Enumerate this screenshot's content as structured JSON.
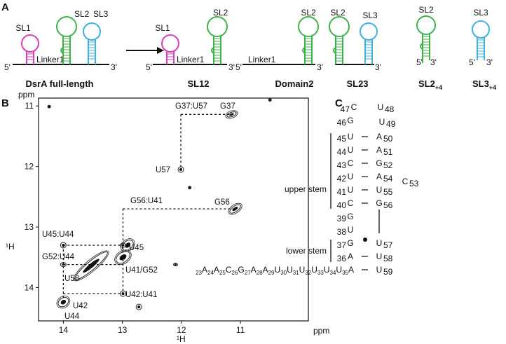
{
  "panel_a": {
    "label": "A",
    "full_length": {
      "name": "DsrA full-length",
      "sl1": "SL1",
      "sl2": "SL2",
      "sl3": "SL3",
      "five": "5'",
      "three": "3'",
      "linker": "Linker1"
    },
    "sl12": {
      "name": "SL12",
      "sl1": "SL1",
      "sl2": "SL2",
      "five": "5'",
      "three": "3'",
      "linker": "Linker1"
    },
    "domain2": {
      "name": "Domain2",
      "sl2": "SL2",
      "five": "5'",
      "three": "3'",
      "linker": "Linker1"
    },
    "sl23": {
      "name": "SL23",
      "sl2": "SL2",
      "sl3": "SL3",
      "three": "3'"
    },
    "sl2_4": {
      "name": "SL2",
      "sub": "+4",
      "sl2": "SL2",
      "five": "5'",
      "three": "3'"
    },
    "sl3_4": {
      "name": "SL3",
      "sub": "+4",
      "sl3": "SL3",
      "five": "5'",
      "three": "3'"
    }
  },
  "panel_b": {
    "label": "B",
    "x_axis": {
      "label": "¹H",
      "unit": "ppm",
      "lim": [
        14.42,
        9.85
      ],
      "ticks": [
        14,
        13,
        12,
        11
      ]
    },
    "y_axis": {
      "label": "¹H",
      "unit": "ppm",
      "lim": [
        10.87,
        14.55
      ],
      "ticks": [
        11,
        12,
        13,
        14
      ]
    },
    "peaks": [
      {
        "x": 11.15,
        "y": 11.14
      },
      {
        "x": 12.01,
        "y": 12.05
      },
      {
        "x": 11.09,
        "y": 12.7
      },
      {
        "x": 12.91,
        "y": 13.3
      },
      {
        "x": 12.99,
        "y": 13.5
      },
      {
        "x": 13.53,
        "y": 13.64
      },
      {
        "x": 14.0,
        "y": 14.24
      },
      {
        "x": 11.86,
        "y": 12.35
      },
      {
        "x": 12.1,
        "y": 13.62
      },
      {
        "x": 12.72,
        "y": 14.32
      },
      {
        "x": 14.0,
        "y": 13.3
      },
      {
        "x": 14.0,
        "y": 13.62
      },
      {
        "x": 12.99,
        "y": 13.3
      },
      {
        "x": 12.99,
        "y": 14.1
      },
      {
        "x": 14.24,
        "y": 11.01
      },
      {
        "x": 10.5,
        "y": 10.9
      }
    ],
    "assignments": [
      "G37:U57",
      "G37",
      "U57",
      "G56:U41",
      "G56",
      "U45:U44",
      "U45",
      "G52:U44",
      "U41/G52",
      "U58",
      "U42:U41",
      "U42",
      "U44"
    ]
  },
  "panel_c": {
    "label": "C",
    "upper_stem": "upper stem",
    "lower_stem": "lower stem",
    "nucleotides": [
      {
        "num": 23,
        "base": "A"
      },
      {
        "num": 24,
        "base": "A"
      },
      {
        "num": 25,
        "base": "C"
      },
      {
        "num": 26,
        "base": "G"
      },
      {
        "num": 27,
        "base": "A"
      },
      {
        "num": 28,
        "base": "A"
      },
      {
        "num": 29,
        "base": "U"
      },
      {
        "num": 30,
        "base": "U"
      },
      {
        "num": 31,
        "base": "U"
      },
      {
        "num": 32,
        "base": "U"
      },
      {
        "num": 33,
        "base": "U"
      },
      {
        "num": 34,
        "base": "U"
      },
      {
        "num": 35,
        "base": "A"
      },
      {
        "num": 36,
        "base": "A"
      },
      {
        "num": 37,
        "base": "G"
      },
      {
        "num": 38,
        "base": "U"
      },
      {
        "num": 39,
        "base": "G"
      },
      {
        "num": 40,
        "base": "C"
      },
      {
        "num": 41,
        "base": "U"
      },
      {
        "num": 42,
        "base": "U"
      },
      {
        "num": 43,
        "base": "C"
      },
      {
        "num": 44,
        "base": "U"
      },
      {
        "num": 45,
        "base": "U"
      },
      {
        "num": 46,
        "base": "G"
      },
      {
        "num": 47,
        "base": "C"
      },
      {
        "num": 48,
        "base": "U"
      },
      {
        "num": 49,
        "base": "U"
      },
      {
        "num": 50,
        "base": "A"
      },
      {
        "num": 51,
        "base": "A"
      },
      {
        "num": 52,
        "base": "G"
      },
      {
        "num": 53,
        "base": "C"
      },
      {
        "num": 54,
        "base": "A"
      },
      {
        "num": 55,
        "base": "U"
      },
      {
        "num": 56,
        "base": "G"
      },
      {
        "num": 57,
        "base": "U"
      },
      {
        "num": 58,
        "base": "U"
      },
      {
        "num": 59,
        "base": "U"
      }
    ]
  }
}
